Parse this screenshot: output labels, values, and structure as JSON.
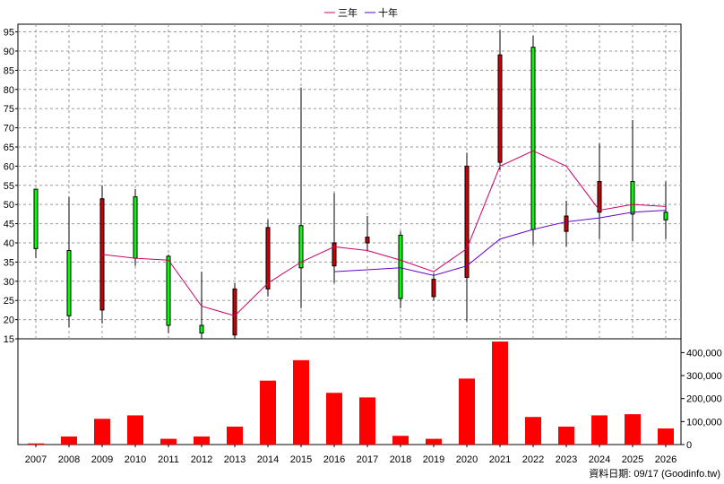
{
  "legend": [
    {
      "name": "三年",
      "color": "#cc0066"
    },
    {
      "name": "十年",
      "color": "#6600cc"
    }
  ],
  "footer": "資料日期: 09/17 (Goodinfo.tw)",
  "chart_data": [
    {
      "type": "candlestick",
      "years": [
        "2007",
        "2008",
        "2009",
        "2010",
        "2011",
        "2012",
        "2013",
        "2014",
        "2015",
        "2016",
        "2017",
        "2018",
        "2019",
        "2020",
        "2021",
        "2022",
        "2023",
        "2024",
        "2025",
        "2026"
      ],
      "ylim": [
        15,
        97
      ],
      "yticks": [
        15,
        20,
        25,
        30,
        35,
        40,
        45,
        50,
        55,
        60,
        65,
        70,
        75,
        80,
        85,
        90,
        95
      ],
      "grid": true,
      "candles": [
        {
          "open": 38.5,
          "close": 54,
          "high": 54,
          "low": 36,
          "color": "green"
        },
        {
          "open": 21,
          "close": 38,
          "high": 52,
          "low": 18,
          "color": "green"
        },
        {
          "open": 51.5,
          "close": 22.5,
          "high": 55,
          "low": 19,
          "color": "red"
        },
        {
          "open": 36,
          "close": 52,
          "high": 54,
          "low": 34,
          "color": "green"
        },
        {
          "open": 18.5,
          "close": 36.5,
          "high": 37,
          "low": 16.5,
          "color": "green"
        },
        {
          "open": 16.5,
          "close": 18.5,
          "high": 32.5,
          "low": 15,
          "color": "green"
        },
        {
          "open": 28,
          "close": 16,
          "high": 29.5,
          "low": 15,
          "color": "red"
        },
        {
          "open": 44,
          "close": 28,
          "high": 46,
          "low": 26,
          "color": "red"
        },
        {
          "open": 33.5,
          "close": 44.5,
          "high": 80.5,
          "low": 23,
          "color": "green"
        },
        {
          "open": 40,
          "close": 34,
          "high": 53,
          "low": 29.5,
          "color": "red"
        },
        {
          "open": 41.5,
          "close": 40,
          "high": 47,
          "low": 38,
          "color": "red"
        },
        {
          "open": 25.5,
          "close": 42,
          "high": 43,
          "low": 23,
          "color": "green"
        },
        {
          "open": 30.5,
          "close": 26,
          "high": 32,
          "low": 25,
          "color": "red"
        },
        {
          "open": 60,
          "close": 31,
          "high": 63.5,
          "low": 19.5,
          "color": "red"
        },
        {
          "open": 89,
          "close": 61,
          "high": 95.5,
          "low": 59,
          "color": "red"
        },
        {
          "open": 43.5,
          "close": 91,
          "high": 94,
          "low": 39.5,
          "color": "green"
        },
        {
          "open": 47,
          "close": 43,
          "high": 51,
          "low": 39,
          "color": "red"
        },
        {
          "open": 56,
          "close": 48,
          "high": 66,
          "low": 41,
          "color": "red"
        },
        {
          "open": 47.5,
          "close": 56,
          "high": 72,
          "low": 40.5,
          "color": "green"
        },
        {
          "open": 46,
          "close": 48,
          "high": 56,
          "low": 41,
          "color": "green"
        }
      ],
      "series": [
        {
          "name": "三年",
          "color": "#cc0066",
          "values": [
            null,
            null,
            37,
            36,
            35.5,
            23.5,
            21,
            29.5,
            35,
            39,
            38,
            35.5,
            32.5,
            38.5,
            60,
            64,
            60,
            48.5,
            50,
            49.5
          ]
        },
        {
          "name": "十年",
          "color": "#6600cc",
          "values": [
            null,
            null,
            null,
            null,
            null,
            null,
            null,
            null,
            null,
            32.5,
            33,
            33.5,
            31.5,
            34,
            41,
            43.5,
            45.5,
            46.5,
            48,
            48.5
          ]
        }
      ]
    },
    {
      "type": "bar",
      "categories": [
        "2007",
        "2008",
        "2009",
        "2010",
        "2011",
        "2012",
        "2013",
        "2014",
        "2015",
        "2016",
        "2017",
        "2018",
        "2019",
        "2020",
        "2021",
        "2022",
        "2023",
        "2024",
        "2025",
        "2026"
      ],
      "values": [
        5000,
        35000,
        112000,
        127000,
        25000,
        35000,
        78000,
        278000,
        367000,
        225000,
        205000,
        38000,
        25000,
        287000,
        448000,
        120000,
        78000,
        127000,
        132000,
        70000
      ],
      "ylim": [
        0,
        460000
      ],
      "yticks": [
        0,
        100000,
        200000,
        300000,
        400000
      ],
      "ytick_labels": [
        "0",
        "100,000",
        "200,000",
        "300,000",
        "400,000"
      ],
      "color": "#ff0000"
    }
  ]
}
